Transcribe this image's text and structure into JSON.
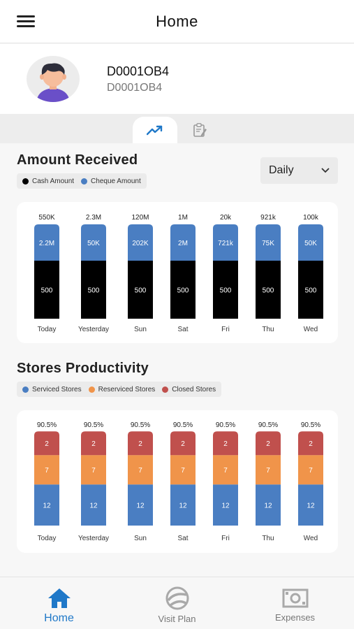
{
  "header": {
    "title": "Home",
    "menu_icon": "hamburger-menu-icon"
  },
  "profile": {
    "name": "D0001OB4",
    "code": "D0001OB4",
    "avatar_icon": "user-avatar-icon"
  },
  "tabs": [
    {
      "icon": "trending-up-icon",
      "active": true
    },
    {
      "icon": "clipboard-icon",
      "active": false
    }
  ],
  "amount_received": {
    "title": "Amount Received",
    "period": "Daily",
    "legend": [
      {
        "label": "Cash Amount",
        "color": "#000000"
      },
      {
        "label": "Cheque Amount",
        "color": "#4a7ec2"
      }
    ]
  },
  "stores_productivity": {
    "title": "Stores Productivity",
    "legend": [
      {
        "label": "Serviced Stores",
        "color": "#4a7ec2"
      },
      {
        "label": "Reserviced Stores",
        "color": "#f0944a"
      },
      {
        "label": "Closed Stores",
        "color": "#c0504d"
      }
    ]
  },
  "chart_data": [
    {
      "type": "bar",
      "title": "Amount Received",
      "categories": [
        "Today",
        "Yesterday",
        "Sun",
        "Sat",
        "Fri",
        "Thu",
        "Wed"
      ],
      "series": [
        {
          "name": "Cash Amount",
          "values": [
            500,
            500,
            500,
            500,
            500,
            500,
            500
          ],
          "labels": [
            "500",
            "500",
            "500",
            "500",
            "500",
            "500",
            "500"
          ],
          "color": "#000000"
        },
        {
          "name": "Cheque Amount",
          "values": [
            2200000,
            50000,
            202000,
            2000000,
            721000,
            75000,
            50000
          ],
          "labels": [
            "2.2M",
            "50K",
            "202K",
            "2M",
            "721k",
            "75K",
            "50K"
          ],
          "color": "#4a7ec2"
        }
      ],
      "totals": [
        "550K",
        "2.3M",
        "120M",
        "1M",
        "20k",
        "921k",
        "100k"
      ]
    },
    {
      "type": "bar",
      "title": "Stores Productivity",
      "categories": [
        "Today",
        "Yesterday",
        "Sun",
        "Sat",
        "Fri",
        "Thu",
        "Wed"
      ],
      "series": [
        {
          "name": "Serviced Stores",
          "values": [
            12,
            12,
            12,
            12,
            12,
            12,
            12
          ],
          "color": "#4a7ec2"
        },
        {
          "name": "Reserviced Stores",
          "values": [
            7,
            7,
            7,
            7,
            7,
            7,
            7
          ],
          "color": "#f0944a"
        },
        {
          "name": "Closed Stores",
          "values": [
            2,
            2,
            2,
            2,
            2,
            2,
            2
          ],
          "color": "#c0504d"
        }
      ],
      "totals": [
        "90.5%",
        "90.5%",
        "90.5%",
        "90.5%",
        "90.5%",
        "90.5%",
        "90.5%"
      ]
    }
  ],
  "bottom_nav": [
    {
      "label": "Home",
      "icon": "home-icon",
      "active": true
    },
    {
      "label": "Visit Plan",
      "icon": "visit-plan-icon",
      "active": false
    },
    {
      "label": "Expenses",
      "icon": "money-icon",
      "active": false
    }
  ]
}
